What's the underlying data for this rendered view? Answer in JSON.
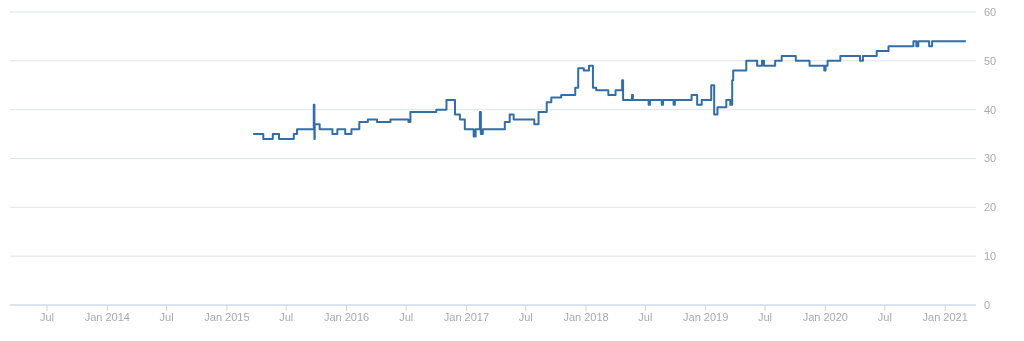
{
  "chart_data": {
    "type": "step",
    "x": [
      "2015-03-22",
      "2015-04-22",
      "2015-05-21",
      "2015-06-09",
      "2015-07-24",
      "2015-08-03",
      "2015-09-23",
      "2015-09-25",
      "2015-09-26",
      "2015-10-11",
      "2015-11-19",
      "2015-12-04",
      "2015-12-28",
      "2016-01-16",
      "2016-02-09",
      "2016-03-06",
      "2016-04-03",
      "2016-05-14",
      "2016-07-08",
      "2016-07-14",
      "2016-10-01",
      "2016-11-01",
      "2016-11-27",
      "2016-12-12",
      "2016-12-27",
      "2017-01-23",
      "2017-01-29",
      "2017-02-11",
      "2017-02-14",
      "2017-02-20",
      "2017-04-28",
      "2017-05-13",
      "2017-05-25",
      "2017-07-27",
      "2017-08-09",
      "2017-09-03",
      "2017-09-17",
      "2017-10-17",
      "2017-11-29",
      "2017-12-08",
      "2017-12-25",
      "2018-01-10",
      "2018-01-22",
      "2018-02-01",
      "2018-03-10",
      "2018-04-01",
      "2018-04-21",
      "2018-04-24",
      "2018-05-21",
      "2018-05-24",
      "2018-07-11",
      "2018-07-15",
      "2018-08-20",
      "2018-08-24",
      "2018-09-25",
      "2018-09-29",
      "2018-11-19",
      "2018-12-06",
      "2018-12-20",
      "2019-01-18",
      "2019-01-27",
      "2019-02-06",
      "2019-03-05",
      "2019-03-17",
      "2019-03-23",
      "2019-03-26",
      "2019-05-05",
      "2019-06-07",
      "2019-06-22",
      "2019-06-28",
      "2019-08-01",
      "2019-08-21",
      "2019-10-03",
      "2019-11-14",
      "2019-12-29",
      "2020-01-02",
      "2020-01-08",
      "2020-02-16",
      "2020-04-16",
      "2020-04-25",
      "2020-06-06",
      "2020-07-12",
      "2020-09-26",
      "2020-10-05",
      "2020-10-11",
      "2020-11-13",
      "2020-11-22",
      "2021-03-05"
    ],
    "series": [
      {
        "color": "#336ea8",
        "values": [
          35,
          34,
          35,
          34,
          35,
          36,
          41,
          34,
          37,
          36,
          35,
          36,
          35,
          36,
          37.5,
          38,
          37.5,
          38,
          37.5,
          39.5,
          40,
          42,
          39,
          38,
          36,
          34.5,
          36,
          39.5,
          35,
          36,
          37.5,
          39,
          38,
          37,
          39.5,
          41.5,
          42.5,
          43,
          44.5,
          48.5,
          48,
          49,
          44.5,
          44,
          43,
          44,
          46,
          42,
          43,
          42,
          41,
          42,
          41,
          42,
          41,
          42,
          43,
          41,
          42,
          45,
          39,
          40.5,
          42,
          41,
          46,
          48,
          50,
          49,
          50,
          49,
          50,
          51,
          50,
          49,
          48,
          49,
          50,
          51,
          50,
          51,
          52,
          53,
          54,
          53,
          54,
          53,
          54,
          54
        ]
      }
    ],
    "xlim": [
      "2013-03-10",
      "2021-04-05"
    ],
    "xticks": [
      {
        "value": "2013-07-01",
        "label": "Jul"
      },
      {
        "value": "2014-01-01",
        "label": "Jan 2014"
      },
      {
        "value": "2014-07-01",
        "label": "Jul"
      },
      {
        "value": "2015-01-01",
        "label": "Jan 2015"
      },
      {
        "value": "2015-07-01",
        "label": "Jul"
      },
      {
        "value": "2016-01-01",
        "label": "Jan 2016"
      },
      {
        "value": "2016-07-01",
        "label": "Jul"
      },
      {
        "value": "2017-01-01",
        "label": "Jan 2017"
      },
      {
        "value": "2017-07-01",
        "label": "Jul"
      },
      {
        "value": "2018-01-01",
        "label": "Jan 2018"
      },
      {
        "value": "2018-07-01",
        "label": "Jul"
      },
      {
        "value": "2019-01-01",
        "label": "Jan 2019"
      },
      {
        "value": "2019-07-01",
        "label": "Jul"
      },
      {
        "value": "2020-01-01",
        "label": "Jan 2020"
      },
      {
        "value": "2020-07-01",
        "label": "Jul"
      },
      {
        "value": "2021-01-01",
        "label": "Jan 2021"
      }
    ],
    "ylim": [
      0,
      60
    ],
    "yticks": [
      0,
      10,
      20,
      30,
      40,
      50,
      60
    ],
    "grid": "y"
  }
}
